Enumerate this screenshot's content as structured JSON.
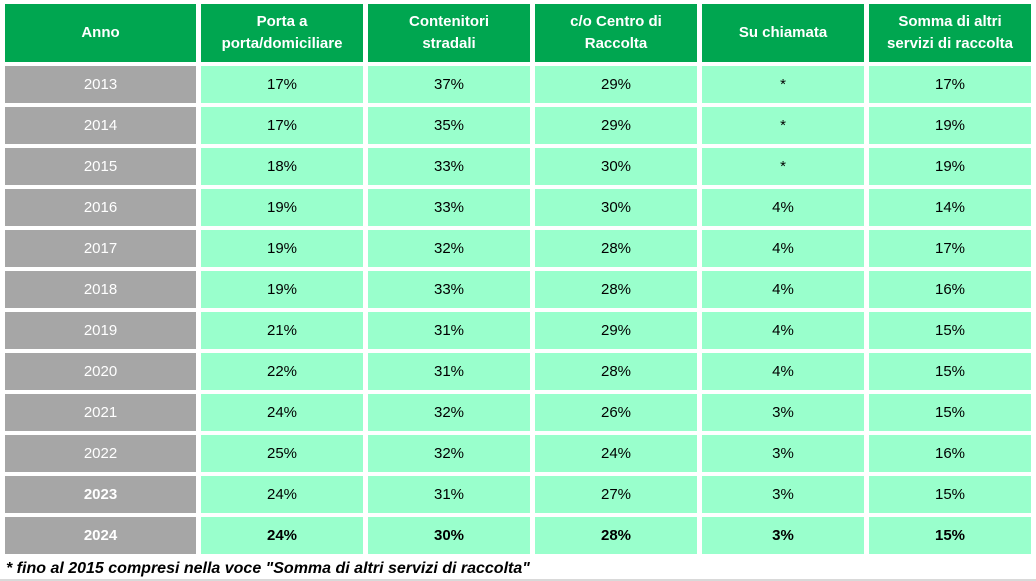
{
  "chart_data": {
    "type": "table",
    "columns": [
      "Anno",
      "Porta a\nporta/domiciliare",
      "Contenitori\nstradali",
      "c/o Centro di\nRaccolta",
      "Su chiamata",
      "Somma di altri\nservizi di raccolta"
    ],
    "rows": [
      {
        "year": "2013",
        "values": [
          "17%",
          "37%",
          "29%",
          "*",
          "17%"
        ],
        "year_bold": false,
        "values_bold": false
      },
      {
        "year": "2014",
        "values": [
          "17%",
          "35%",
          "29%",
          "*",
          "19%"
        ],
        "year_bold": false,
        "values_bold": false
      },
      {
        "year": "2015",
        "values": [
          "18%",
          "33%",
          "30%",
          "*",
          "19%"
        ],
        "year_bold": false,
        "values_bold": false
      },
      {
        "year": "2016",
        "values": [
          "19%",
          "33%",
          "30%",
          "4%",
          "14%"
        ],
        "year_bold": false,
        "values_bold": false
      },
      {
        "year": "2017",
        "values": [
          "19%",
          "32%",
          "28%",
          "4%",
          "17%"
        ],
        "year_bold": false,
        "values_bold": false
      },
      {
        "year": "2018",
        "values": [
          "19%",
          "33%",
          "28%",
          "4%",
          "16%"
        ],
        "year_bold": false,
        "values_bold": false
      },
      {
        "year": "2019",
        "values": [
          "21%",
          "31%",
          "29%",
          "4%",
          "15%"
        ],
        "year_bold": false,
        "values_bold": false
      },
      {
        "year": "2020",
        "values": [
          "22%",
          "31%",
          "28%",
          "4%",
          "15%"
        ],
        "year_bold": false,
        "values_bold": false
      },
      {
        "year": "2021",
        "values": [
          "24%",
          "32%",
          "26%",
          "3%",
          "15%"
        ],
        "year_bold": false,
        "values_bold": false
      },
      {
        "year": "2022",
        "values": [
          "25%",
          "32%",
          "24%",
          "3%",
          "16%"
        ],
        "year_bold": false,
        "values_bold": false
      },
      {
        "year": "2023",
        "values": [
          "24%",
          "31%",
          "27%",
          "3%",
          "15%"
        ],
        "year_bold": true,
        "values_bold": false
      },
      {
        "year": "2024",
        "values": [
          "24%",
          "30%",
          "28%",
          "3%",
          "15%"
        ],
        "year_bold": true,
        "values_bold": true
      }
    ],
    "footnote": "* fino al 2015 compresi nella voce \"Somma di altri servizi di raccolta\""
  },
  "colors": {
    "header_green": "#00A650",
    "year_gray": "#A6A6A6",
    "cell_mint": "#99FFCC",
    "header_text": "#FFFFFF",
    "cell_text": "#000000"
  }
}
